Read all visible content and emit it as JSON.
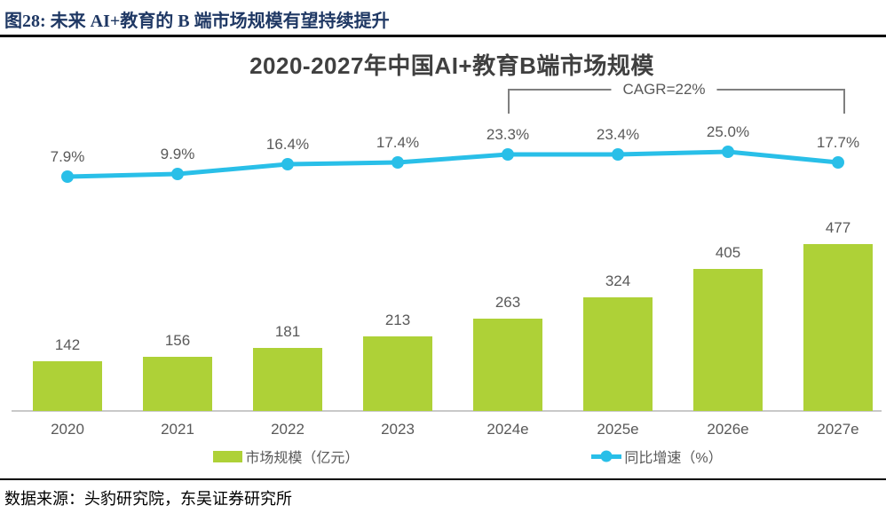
{
  "header": {
    "caption": "图28:  未来 AI+教育的 B 端市场规模有望持续提升"
  },
  "footer": {
    "source": "数据来源：头豹研究院，东吴证券研究所"
  },
  "chart_data": {
    "type": "bar",
    "subtype": "bar-line-combo",
    "title": "2020-2027年中国AI+教育B端市场规模",
    "categories": [
      "2020",
      "2021",
      "2022",
      "2023",
      "2024e",
      "2025e",
      "2026e",
      "2027e"
    ],
    "series": [
      {
        "name": "市场规模（亿元）",
        "type": "bar",
        "values": [
          142,
          156,
          181,
          213,
          263,
          324,
          405,
          477
        ],
        "labels": [
          "142",
          "156",
          "181",
          "213",
          "263",
          "324",
          "405",
          "477"
        ],
        "color": "#AED137"
      },
      {
        "name": "同比增速（%）",
        "type": "line",
        "values": [
          7.9,
          9.9,
          16.4,
          17.4,
          23.3,
          23.4,
          25.0,
          17.7
        ],
        "labels": [
          "7.9%",
          "9.9%",
          "16.4%",
          "17.4%",
          "23.3%",
          "23.4%",
          "25.0%",
          "17.7%"
        ],
        "color": "#29BFE8"
      }
    ],
    "annotation": {
      "label": "CAGR=22%",
      "span": [
        "2024e",
        "2027e"
      ]
    },
    "legend": [
      "市场规模（亿元）",
      "同比增速（%）"
    ],
    "legend_position": "bottom",
    "grid": false,
    "xlabel": "",
    "ylabel": "",
    "bar_axis_range": [
      0,
      500
    ],
    "line_axis_unit": "%"
  },
  "colors": {
    "bar": "#AED137",
    "line": "#29BFE8",
    "label_gray": "#595959",
    "title_gray": "#404040",
    "caption_navy": "#1F3864",
    "axis_gray": "#C9C9C9",
    "bracket_gray": "#7F7F7F",
    "rule_black": "#000000"
  }
}
